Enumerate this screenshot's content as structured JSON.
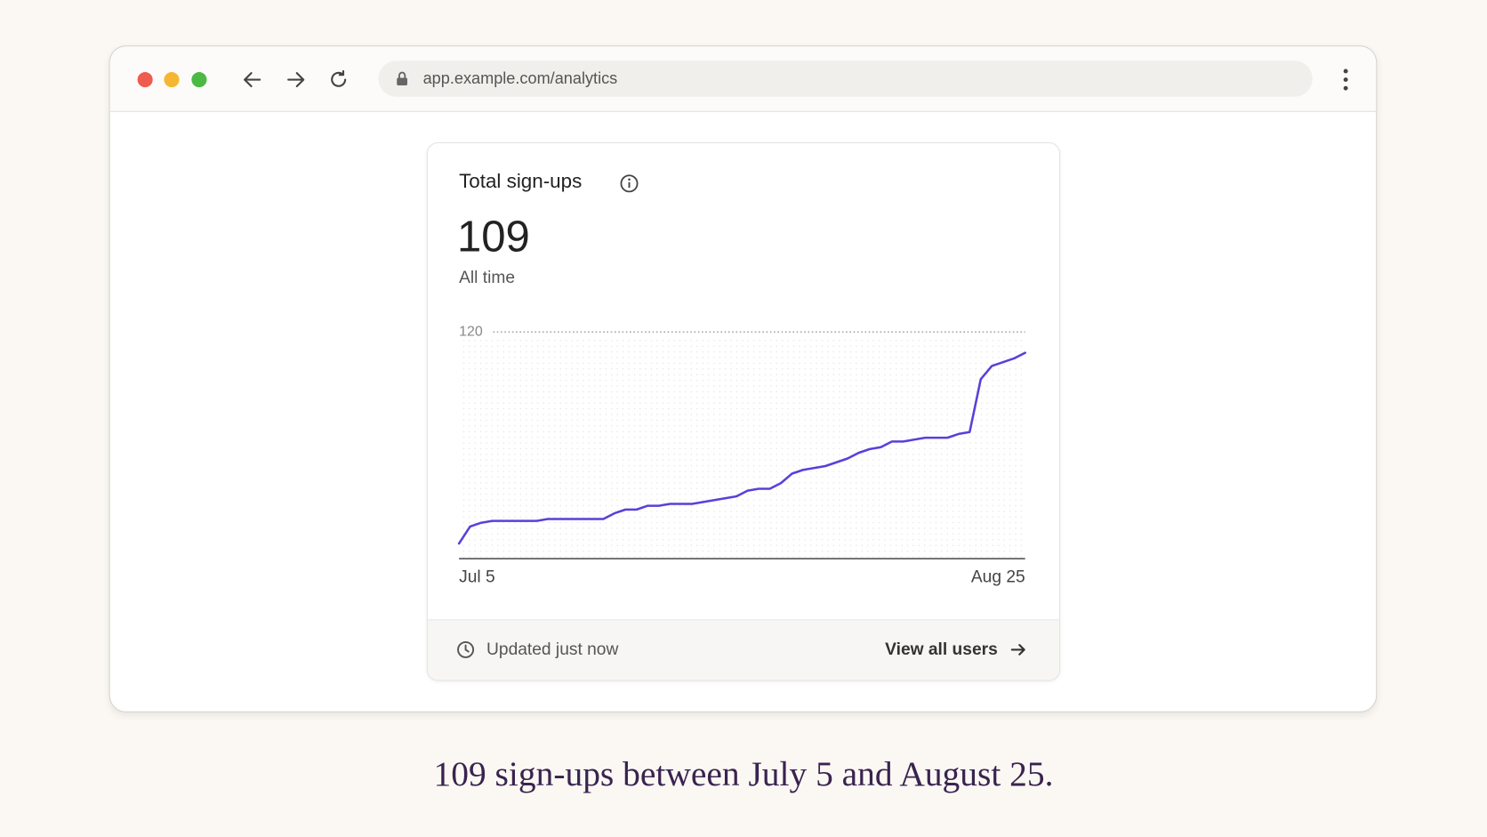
{
  "browser": {
    "url": "app.example.com/analytics"
  },
  "card": {
    "title": "Total sign-ups",
    "total": 109,
    "period": "All time",
    "updated": "Updated just now",
    "link": "View all users"
  },
  "chart_data": {
    "type": "line",
    "categories": [
      "Jul 5",
      null,
      null,
      null,
      null,
      null,
      null,
      null,
      null,
      null,
      null,
      null,
      null,
      null,
      null,
      null,
      null,
      null,
      null,
      null,
      null,
      null,
      null,
      null,
      null,
      null,
      null,
      null,
      null,
      null,
      null,
      null,
      null,
      null,
      null,
      null,
      null,
      null,
      null,
      null,
      null,
      null,
      null,
      null,
      null,
      null,
      null,
      null,
      null,
      null,
      null,
      "Aug 25"
    ],
    "values": [
      8,
      17,
      19,
      20,
      20,
      20,
      20,
      20,
      21,
      21,
      21,
      21,
      21,
      21,
      24,
      26,
      26,
      28,
      28,
      29,
      29,
      29,
      30,
      31,
      32,
      33,
      36,
      37,
      37,
      40,
      45,
      47,
      48,
      49,
      51,
      53,
      56,
      58,
      59,
      62,
      62,
      63,
      64,
      64,
      64,
      66,
      67,
      95,
      102,
      104,
      106,
      109
    ],
    "color": "#5b3fd9",
    "ylim": [
      0,
      120
    ],
    "yticks": [
      120
    ],
    "grid": true
  },
  "caption": "109 sign-ups between July 5 and August 25."
}
